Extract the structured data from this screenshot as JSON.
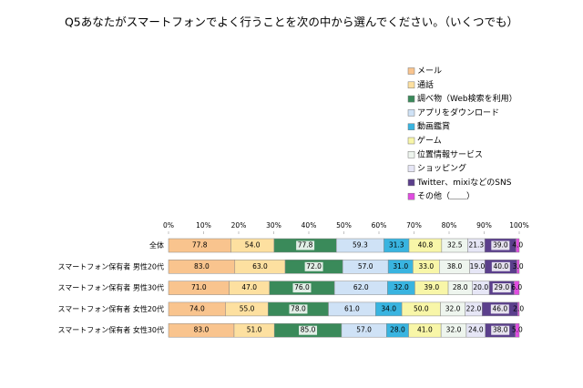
{
  "chart_data": {
    "type": "stacked-bar-100",
    "title": "Q5あなたがスマートフォンでよく行うことを次の中から選んでください。（いくつでも）",
    "categories": [
      "全体",
      "スマートフォン保有者 男性20代",
      "スマートフォン保有者 男性30代",
      "スマートフォン保有者 女性20代",
      "スマートフォン保有者 女性30代"
    ],
    "xlim": [
      0,
      100
    ],
    "xticks": [
      {
        "value": 0,
        "label": "0%"
      },
      {
        "value": 10,
        "label": "10%"
      },
      {
        "value": 20,
        "label": "20%"
      },
      {
        "value": 30,
        "label": "30%"
      },
      {
        "value": 40,
        "label": "40%"
      },
      {
        "value": 50,
        "label": "50%"
      },
      {
        "value": 60,
        "label": "60%"
      },
      {
        "value": 70,
        "label": "70%"
      },
      {
        "value": 80,
        "label": "80%"
      },
      {
        "value": 90,
        "label": "90%"
      },
      {
        "value": 100,
        "label": "100%"
      }
    ],
    "series": [
      {
        "name": "メール",
        "color": "#f9c48e",
        "values": [
          77.8,
          83,
          71,
          74,
          83
        ],
        "value_labels": [
          "77.8",
          "83.0",
          "71.0",
          "74.0",
          "83.0"
        ]
      },
      {
        "name": "通話",
        "color": "#fde0a0",
        "values": [
          54,
          63,
          47,
          55,
          51
        ],
        "value_labels": [
          "54.0",
          "63.0",
          "47.0",
          "55.0",
          "51.0"
        ]
      },
      {
        "name": "調べ物（Web検索を利用）",
        "color": "#3a8a5a",
        "values": [
          77.8,
          72,
          76,
          78,
          85
        ],
        "value_labels": [
          "77.8",
          "72.0",
          "76.0",
          "78.0",
          "85.0"
        ]
      },
      {
        "name": "アプリをダウンロード",
        "color": "#cfe2f6",
        "values": [
          59.3,
          57,
          62,
          61,
          57
        ],
        "value_labels": [
          "59.3",
          "57.0",
          "62.0",
          "61.0",
          "57.0"
        ]
      },
      {
        "name": "動画鑑賞",
        "color": "#39b4e0",
        "values": [
          31.3,
          31,
          32,
          34,
          28
        ],
        "value_labels": [
          "31.3",
          "31.0",
          "32.0",
          "34.0",
          "28.0"
        ]
      },
      {
        "name": "ゲーム",
        "color": "#f8f6a8",
        "values": [
          40.8,
          33,
          39,
          50,
          41
        ],
        "value_labels": [
          "40.8",
          "33.0",
          "39.0",
          "50.0",
          "41.0"
        ]
      },
      {
        "name": "位置情報サービス",
        "color": "#eef5ee",
        "values": [
          32.5,
          38,
          28,
          32,
          32
        ],
        "value_labels": [
          "32.5",
          "38.0",
          "28.0",
          "32.0",
          "32.0"
        ]
      },
      {
        "name": "ショッピング",
        "color": "#e6e6f6",
        "values": [
          21.3,
          19,
          20,
          22,
          24
        ],
        "value_labels": [
          "21.3",
          "19.0",
          "20.0",
          "22.0",
          "24.0"
        ]
      },
      {
        "name": "Twitter、mixiなどのSNS",
        "color": "#5b3f8c",
        "values": [
          39,
          40,
          29,
          46,
          38
        ],
        "value_labels": [
          "39.0",
          "40.0",
          "29.0",
          "46.0",
          "38.0"
        ]
      },
      {
        "name": "その他（＿＿）",
        "color": "#e04ce0",
        "values": [
          4,
          3,
          6,
          2,
          5
        ],
        "value_labels": [
          "4.0",
          "3.0",
          "6.0",
          "2.0",
          "5.0"
        ]
      }
    ]
  }
}
